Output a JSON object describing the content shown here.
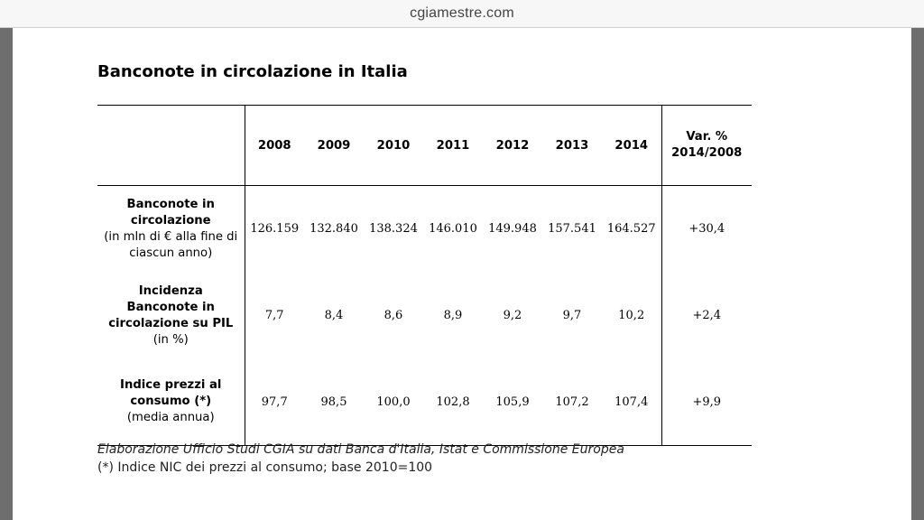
{
  "browser": {
    "url": "cgiamestre.com"
  },
  "title": "Banconote in circolazione in Italia",
  "table": {
    "columns": [
      "2008",
      "2009",
      "2010",
      "2011",
      "2012",
      "2013",
      "2014"
    ],
    "var_header_line1": "Var. %",
    "var_header_line2": "2014/2008",
    "rows": [
      {
        "label_bold": [
          "Banconote in",
          "circolazione"
        ],
        "label_normal": [
          "(in mln di € alla fine di",
          "ciascun anno)"
        ],
        "values": [
          "126.159",
          "132.840",
          "138.324",
          "146.010",
          "149.948",
          "157.541",
          "164.527"
        ],
        "var": "+30,4"
      },
      {
        "label_bold": [
          "Incidenza",
          "Banconote in",
          "circolazione su PIL"
        ],
        "label_normal": [
          "(in %)"
        ],
        "values": [
          "7,7",
          "8,4",
          "8,6",
          "8,9",
          "9,2",
          "9,7",
          "10,2"
        ],
        "var": "+2,4"
      },
      {
        "label_bold": [
          "Indice prezzi al",
          "consumo (*)"
        ],
        "label_normal": [
          "(media annua)"
        ],
        "values": [
          "97,7",
          "98,5",
          "100,0",
          "102,8",
          "105,9",
          "107,2",
          "107,4"
        ],
        "var": "+9,9"
      }
    ]
  },
  "notes": {
    "source": "Elaborazione Ufficio Studi CGIA su dati Banca d'Italia, Istat e Commissione Europea",
    "footnote": "(*) Indice NIC dei prezzi al consumo; base 2010=100"
  }
}
